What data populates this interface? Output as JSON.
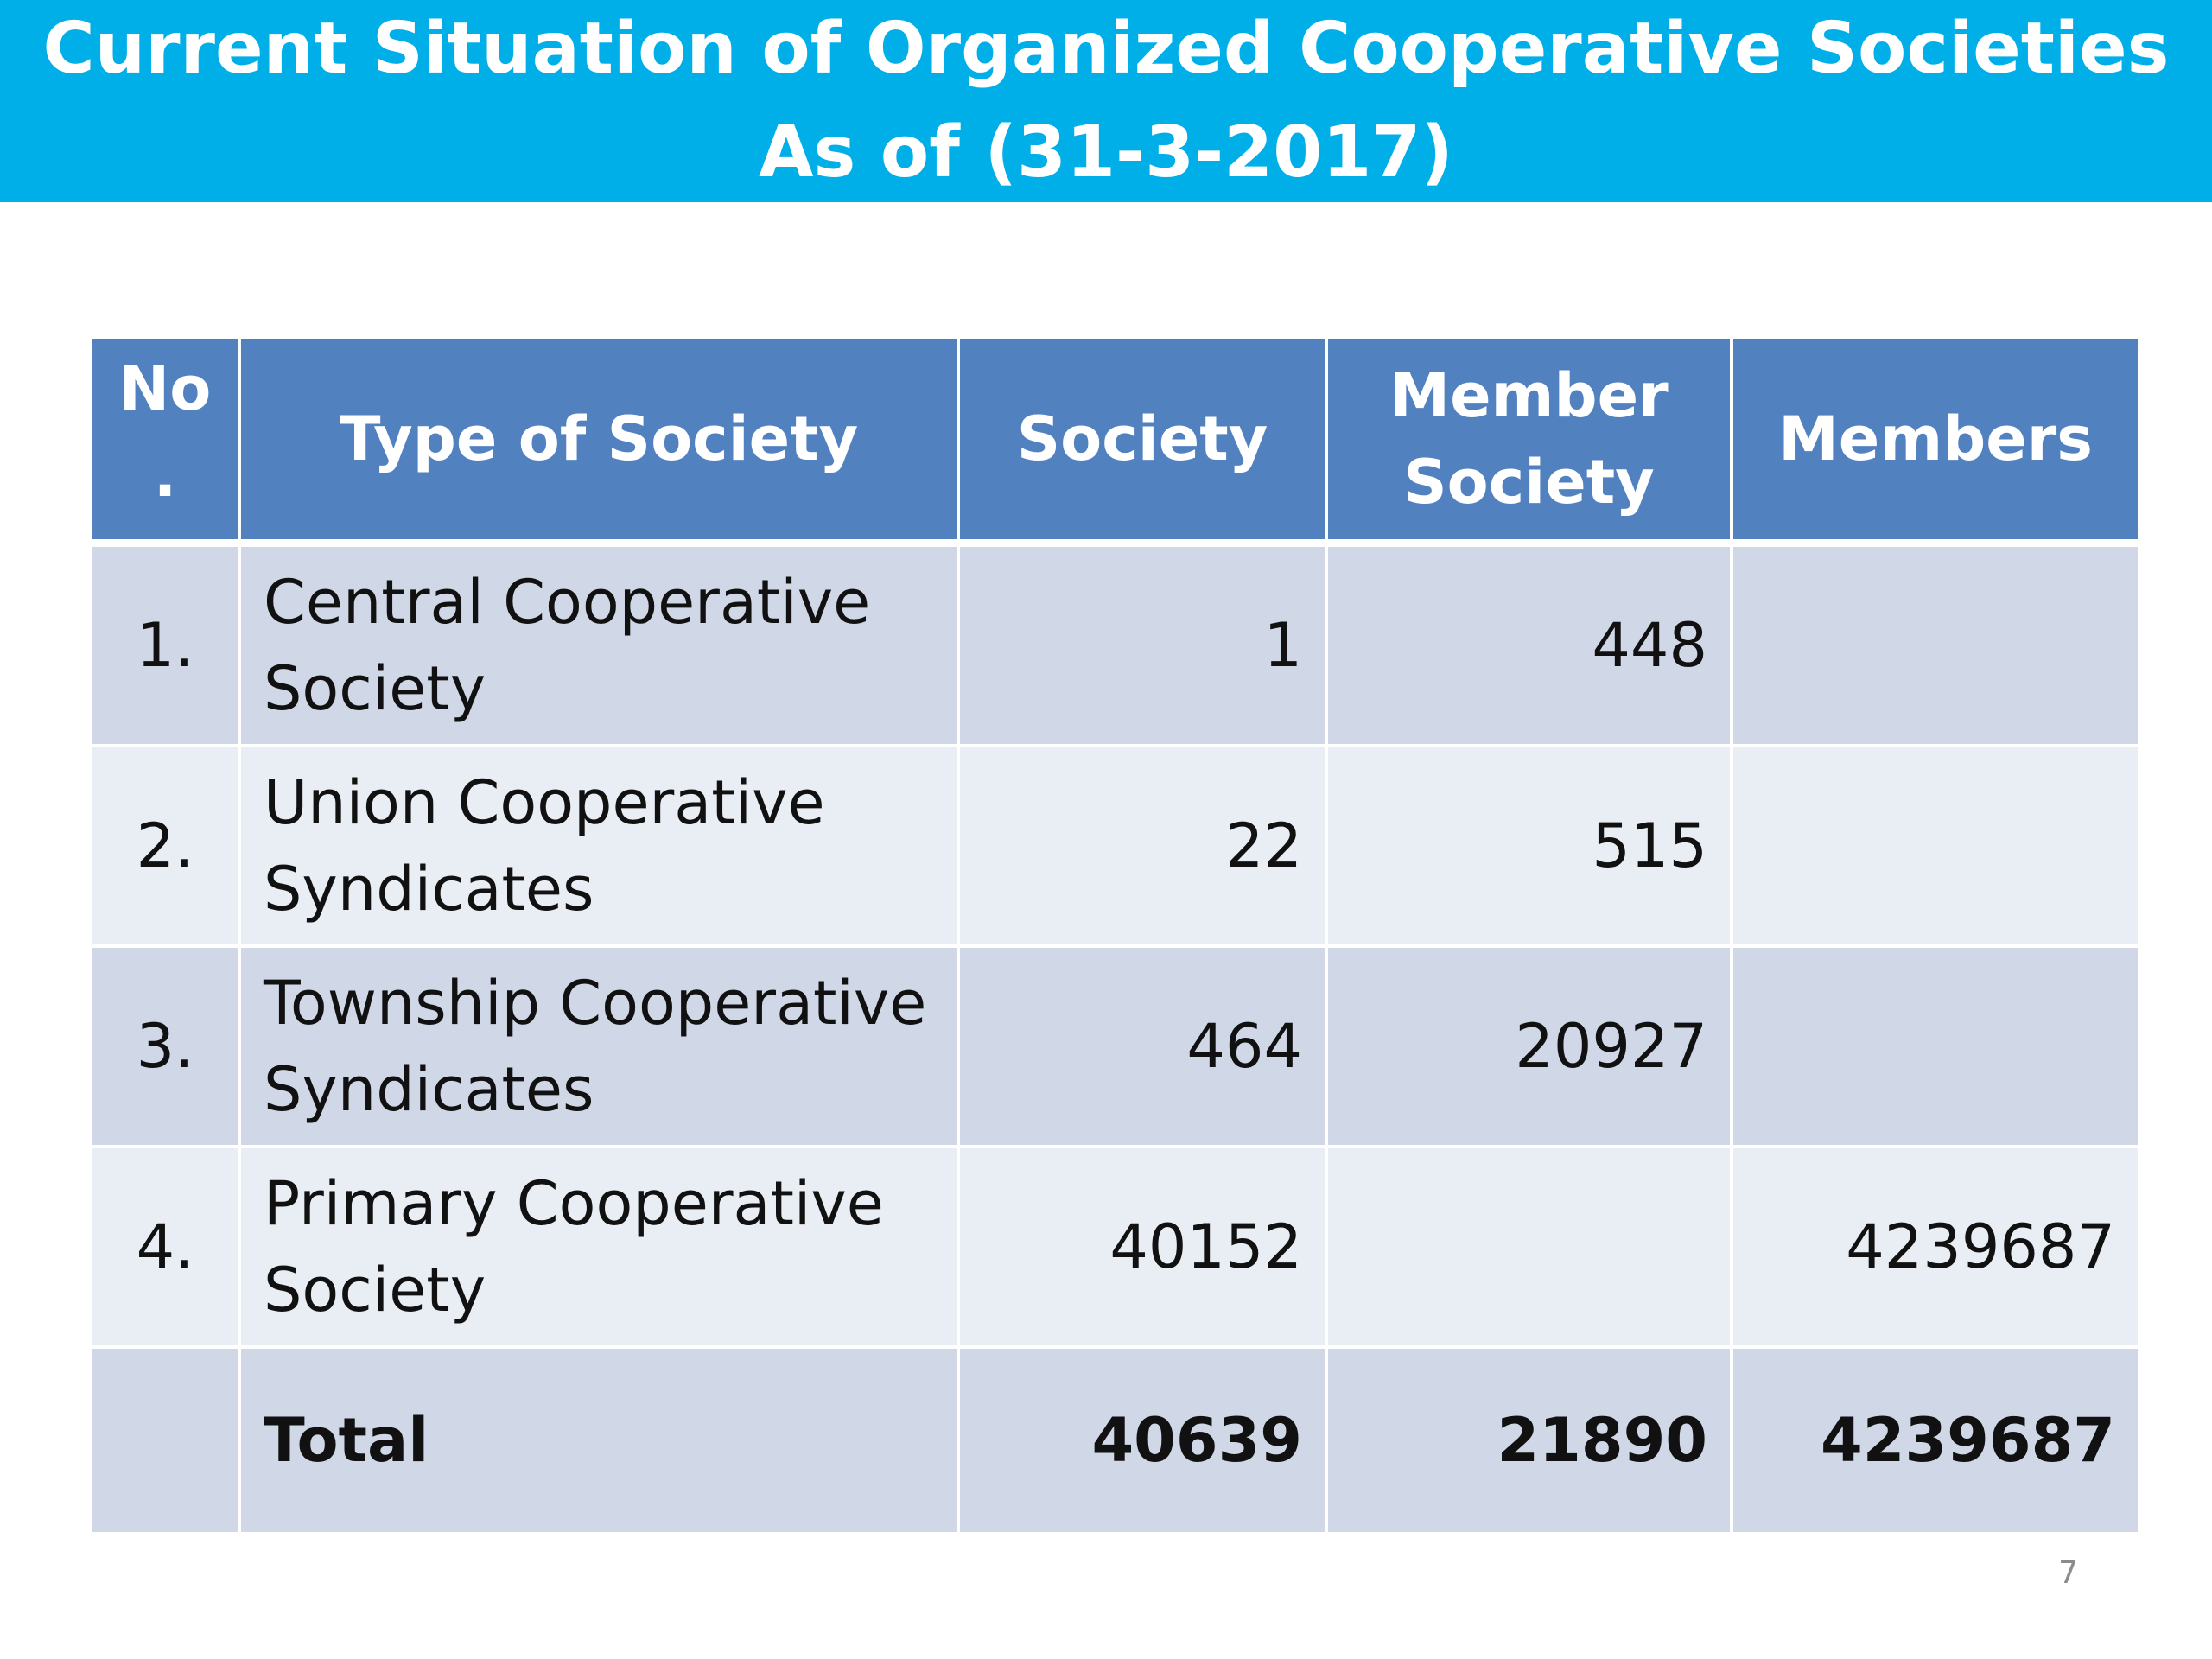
{
  "title": {
    "line1": "Current Situation of Organized Cooperative Societies",
    "line2": "As of (31-3-2017)"
  },
  "table": {
    "headers": {
      "no": "No",
      "no_dot": ".",
      "type": "Type of Society",
      "society": "Society",
      "member_society_line1": "Member",
      "member_society_line2": "Society",
      "members": "Members"
    },
    "rows": [
      {
        "no": "1.",
        "type_line1": "Central Cooperative",
        "type_line2": "Society",
        "society": "1",
        "member_society": "448",
        "members": ""
      },
      {
        "no": "2.",
        "type_line1": "Union Cooperative",
        "type_line2": "Syndicates",
        "society": "22",
        "member_society": "515",
        "members": ""
      },
      {
        "no": "3.",
        "type_line1": "Township Cooperative",
        "type_line2": "Syndicates",
        "society": "464",
        "member_society": "20927",
        "members": ""
      },
      {
        "no": "4.",
        "type_line1": "Primary Cooperative",
        "type_line2": "Society",
        "society": "40152",
        "member_society": "",
        "members": "4239687"
      }
    ],
    "total": {
      "label": "Total",
      "society": "40639",
      "member_society": "21890",
      "members": "4239687"
    }
  },
  "page_number": "7",
  "colors": {
    "title_banner": "#00aee8",
    "header_fill": "#5281c0",
    "row_dark": "#d0d8e8",
    "row_light": "#e9edf4"
  }
}
